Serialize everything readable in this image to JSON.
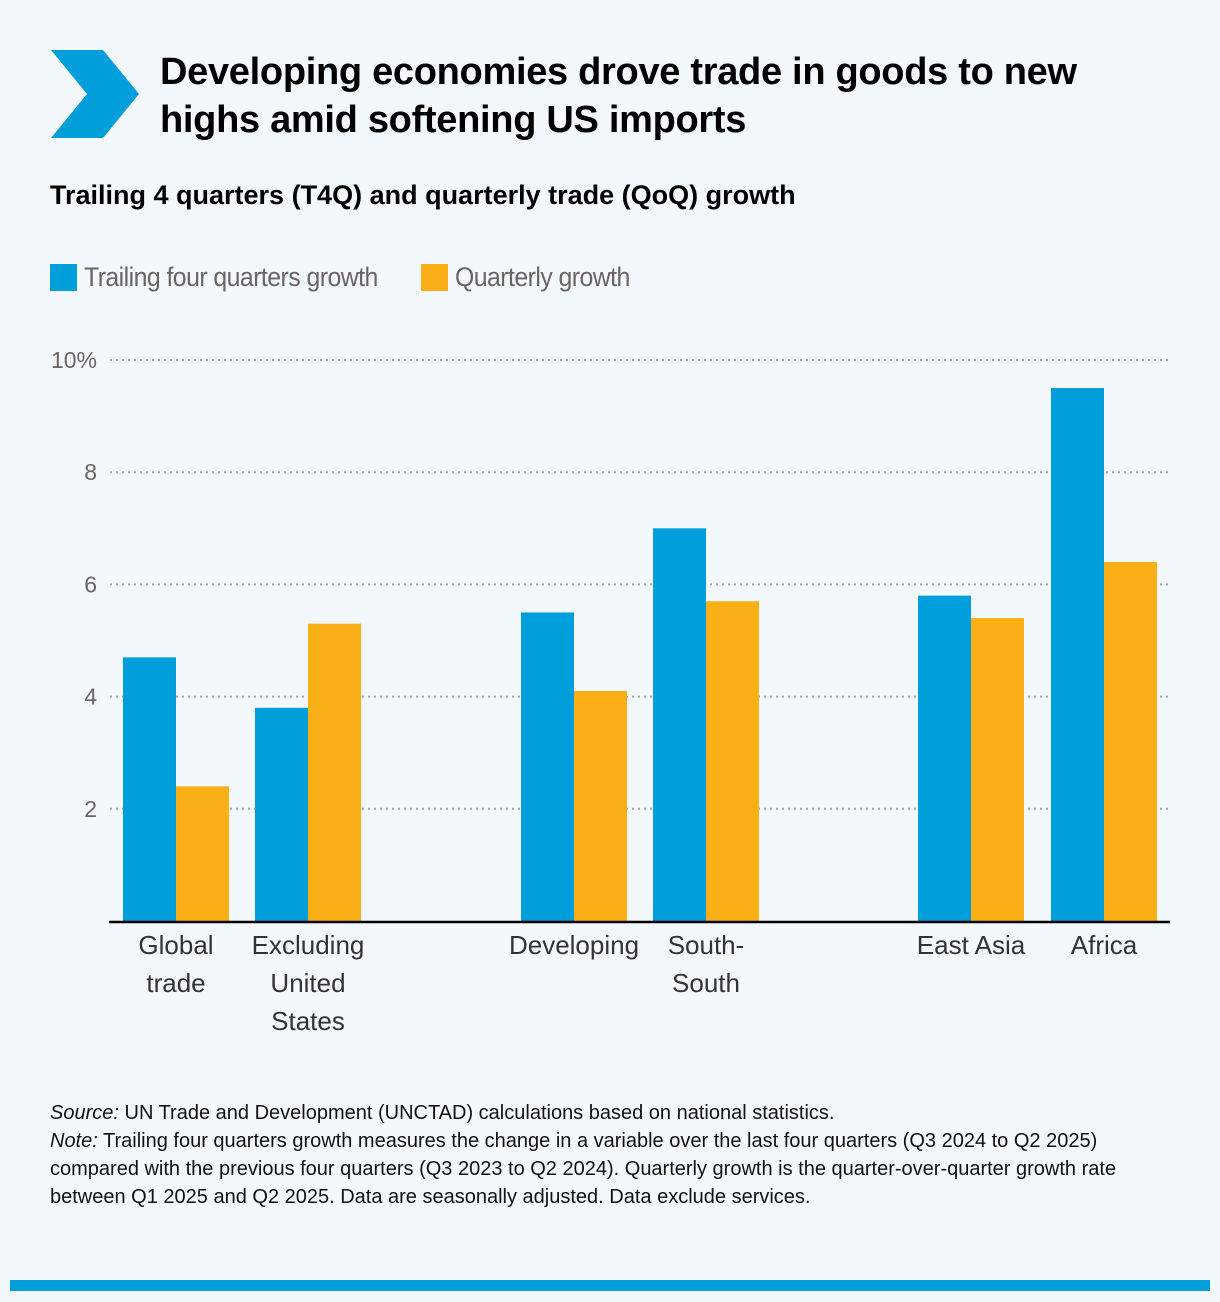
{
  "header": {
    "title": "Developing economies drove trade in goods to new highs amid softening US imports",
    "subtitle": "Trailing 4 quarters (T4Q) and quarterly trade (QoQ) growth",
    "icon": "chevron-right-icon"
  },
  "colors": {
    "accent": "#009edb",
    "t4q": "#009edb",
    "qoq": "#fbaf17",
    "grid": "#a7a2a0",
    "axis": "#000000",
    "background": "#f3f8fc"
  },
  "chart_data": {
    "type": "bar",
    "title": "Trailing 4 quarters (T4Q) and quarterly trade (QoQ) growth",
    "xlabel": "",
    "ylabel": "",
    "ylim": [
      0,
      10
    ],
    "yticks": [
      2,
      4,
      6,
      8,
      10
    ],
    "ytick_labels": [
      "2",
      "4",
      "6",
      "8",
      "10%"
    ],
    "grid": true,
    "legend_position": "top-left",
    "groups": [
      [
        "Global trade",
        "Excluding United States"
      ],
      [
        "Developing",
        "South-South"
      ],
      [
        "East Asia",
        "Africa"
      ]
    ],
    "categories": [
      "Global trade",
      "Excluding United States",
      "Developing",
      "South-South",
      "East Asia",
      "Africa"
    ],
    "category_label_lines": [
      [
        "Global",
        "trade"
      ],
      [
        "Excluding",
        "United",
        "States"
      ],
      [
        "Developing"
      ],
      [
        "South-",
        "South"
      ],
      [
        "East Asia"
      ],
      [
        "Africa"
      ]
    ],
    "series": [
      {
        "name": "Trailing four quarters growth",
        "color": "#009edb",
        "values": [
          4.7,
          3.8,
          5.5,
          7.0,
          5.8,
          9.5
        ]
      },
      {
        "name": "Quarterly growth",
        "color": "#fbaf17",
        "values": [
          2.4,
          5.3,
          4.1,
          5.7,
          5.4,
          6.4
        ]
      }
    ]
  },
  "footnote": {
    "source_label": "Source:",
    "source_text": " UN Trade and Development (UNCTAD) calculations based on national statistics.",
    "note_label": "Note:",
    "note_text": " Trailing four quarters growth measures the change in a variable over the last four quarters (Q3 2024 to Q2 2025) compared with the previous four quarters (Q3 2023 to Q2 2024). Quarterly growth is the quarter-over-quarter growth rate between Q1 2025 and Q2 2025. Data are seasonally adjusted. Data exclude services."
  }
}
